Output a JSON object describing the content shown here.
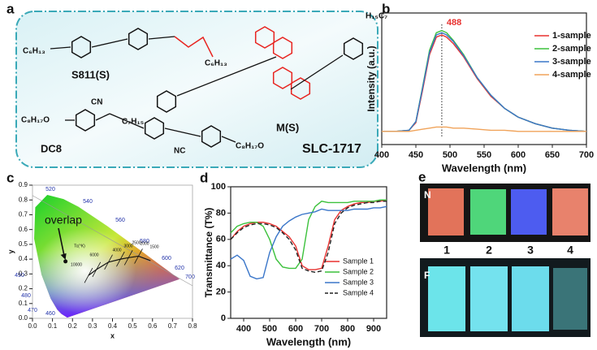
{
  "panel_labels": [
    "a",
    "b",
    "c",
    "d",
    "e"
  ],
  "structures": {
    "s811_left": "C₆H₁₃",
    "s811_right": "C₆H₁₃",
    "s811_name": "S811(S)",
    "m_left": "C₇H₁₅",
    "m_right": "H₁₅C₇",
    "m_name": "M(S)",
    "dc8_left": "C₈H₁₇O",
    "dc8_cn_top": "CN",
    "dc8_cn_bottom": "NC",
    "dc8_right": "C₈H₁₇O",
    "dc8_name": "DC8",
    "mixture": "SLC-1717"
  },
  "photos": {
    "rows": [
      "N",
      "F"
    ],
    "samples": [
      "1",
      "2",
      "3",
      "4"
    ]
  },
  "chart_data": [
    {
      "type": "line",
      "xlabel": "Wavelength (nm)",
      "ylabel": "Intensity (a.u.)",
      "xlim": [
        400,
        700
      ],
      "ylim": [
        0,
        1.2
      ],
      "xticks": [
        400,
        450,
        500,
        550,
        600,
        650,
        700
      ],
      "legend": "upper right",
      "x": [
        400,
        420,
        440,
        450,
        460,
        470,
        480,
        488,
        495,
        505,
        520,
        540,
        560,
        580,
        600,
        625,
        650,
        675,
        700
      ],
      "series": [
        {
          "name": "1-sample",
          "color": "#e8312f",
          "values": [
            0.12,
            0.12,
            0.13,
            0.2,
            0.5,
            0.82,
            0.98,
            1.0,
            0.98,
            0.92,
            0.8,
            0.6,
            0.44,
            0.33,
            0.25,
            0.19,
            0.15,
            0.13,
            0.12
          ]
        },
        {
          "name": "2-sample",
          "color": "#3cc13c",
          "values": [
            0.12,
            0.12,
            0.13,
            0.21,
            0.53,
            0.86,
            1.02,
            1.04,
            1.02,
            0.95,
            0.82,
            0.61,
            0.45,
            0.33,
            0.25,
            0.19,
            0.15,
            0.13,
            0.12
          ]
        },
        {
          "name": "3-sample",
          "color": "#3a76c9",
          "values": [
            0.12,
            0.12,
            0.13,
            0.21,
            0.52,
            0.84,
            1.0,
            1.02,
            1.0,
            0.94,
            0.81,
            0.61,
            0.45,
            0.33,
            0.25,
            0.19,
            0.15,
            0.13,
            0.12
          ]
        },
        {
          "name": "4-sample",
          "color": "#f0a35a",
          "values": [
            0.12,
            0.12,
            0.12,
            0.13,
            0.14,
            0.15,
            0.16,
            0.16,
            0.16,
            0.15,
            0.15,
            0.14,
            0.13,
            0.13,
            0.12,
            0.12,
            0.12,
            0.12,
            0.12
          ]
        }
      ],
      "annotation": {
        "text": "488",
        "x": 488,
        "color": "#e8312f"
      }
    },
    {
      "type": "cie",
      "xlabel": "x",
      "ylabel": "y",
      "xlim": [
        0,
        0.8
      ],
      "ylim": [
        0,
        0.9
      ],
      "xticks": [
        {
          "value": 0,
          "label": "0.0"
        },
        0.1,
        0.2,
        0.3,
        0.4,
        0.5,
        0.6,
        0.7,
        0.8
      ],
      "yticks": [
        {
          "value": 0,
          "label": "0.0"
        },
        0.1,
        0.2,
        0.3,
        0.4,
        0.5,
        0.6,
        0.7,
        0.8,
        0.9
      ],
      "points": {
        "x": [
          0.165
        ],
        "y": [
          0.385
        ]
      },
      "annotation": "overlap",
      "locus_labels": [
        "520",
        "540",
        "560",
        "580",
        "600",
        "620",
        "700",
        "490",
        "480",
        "470",
        "460"
      ],
      "temperature_labels": [
        "Tc(°K)",
        "10000",
        "6000",
        "4000",
        "3000",
        "2500",
        "2000",
        "1500"
      ]
    },
    {
      "type": "line",
      "xlabel": "Wavelength (nm)",
      "ylabel": "Transmittance (T%)",
      "xlim": [
        350,
        950
      ],
      "ylim": [
        0,
        100
      ],
      "xticks": [
        400,
        500,
        600,
        700,
        800,
        900
      ],
      "yticks": [
        0,
        20,
        40,
        60,
        80,
        100
      ],
      "legend": "lower right",
      "x": [
        350,
        375,
        400,
        425,
        450,
        475,
        500,
        525,
        550,
        575,
        600,
        625,
        650,
        675,
        700,
        725,
        750,
        775,
        800,
        825,
        850,
        875,
        900,
        925,
        950
      ],
      "series": [
        {
          "name": "Sample 1",
          "color": "#e8312f",
          "style": "solid",
          "values": [
            60,
            66,
            70,
            72,
            73,
            73,
            72,
            70,
            66,
            62,
            55,
            40,
            37,
            37,
            38,
            55,
            75,
            82,
            85,
            87,
            88,
            88,
            89,
            89,
            90
          ]
        },
        {
          "name": "Sample 2",
          "color": "#3cc13c",
          "style": "solid",
          "values": [
            65,
            70,
            72,
            73,
            73,
            70,
            60,
            45,
            39,
            38,
            38,
            45,
            75,
            85,
            89,
            88,
            88,
            88,
            88,
            89,
            89,
            89,
            89,
            90,
            90
          ]
        },
        {
          "name": "Sample 3",
          "color": "#3a76c9",
          "style": "solid",
          "values": [
            45,
            48,
            44,
            32,
            30,
            31,
            50,
            62,
            70,
            74,
            77,
            79,
            80,
            81,
            83,
            82,
            82,
            82,
            82,
            83,
            83,
            83,
            84,
            84,
            85
          ]
        },
        {
          "name": "Sample 4",
          "color": "#222222",
          "style": "dashed",
          "values": [
            60,
            65,
            69,
            71,
            72,
            72,
            71,
            69,
            65,
            60,
            52,
            38,
            36,
            35,
            36,
            50,
            72,
            80,
            84,
            86,
            87,
            88,
            88,
            89,
            89
          ]
        }
      ]
    }
  ]
}
